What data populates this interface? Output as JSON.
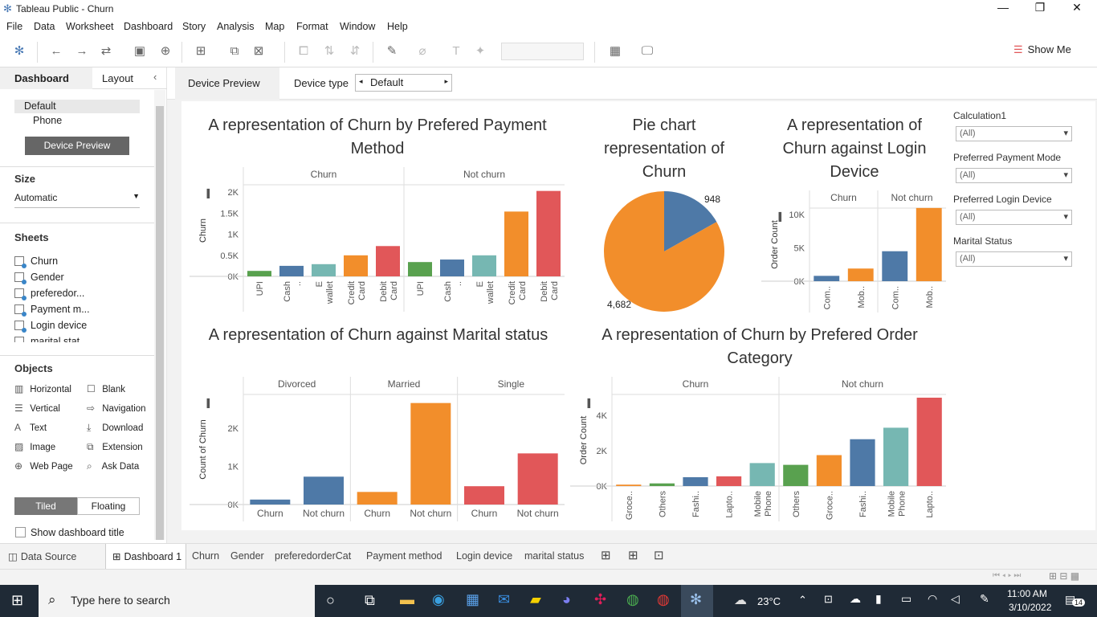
{
  "window": {
    "title": "Tableau Public - Churn"
  },
  "menu": [
    "File",
    "Data",
    "Worksheet",
    "Dashboard",
    "Story",
    "Analysis",
    "Map",
    "Format",
    "Window",
    "Help"
  ],
  "toolbar": {
    "show_me": "Show Me"
  },
  "left": {
    "tab_dashboard": "Dashboard",
    "tab_layout": "Layout",
    "devices": [
      "Default",
      "Phone"
    ],
    "device_preview_btn": "Device Preview",
    "size_head": "Size",
    "size_value": "Automatic",
    "sheets_head": "Sheets",
    "sheets": [
      "Churn",
      "Gender",
      "preferedor...",
      "Payment m...",
      "Login device",
      "marital stat"
    ],
    "objects_head": "Objects",
    "objects": [
      {
        "label": "Horizontal",
        "icon": "horizontal-icon"
      },
      {
        "label": "Blank",
        "icon": "blank-icon"
      },
      {
        "label": "Vertical",
        "icon": "vertical-icon"
      },
      {
        "label": "Navigation",
        "icon": "navigation-icon"
      },
      {
        "label": "Text",
        "icon": "text-icon"
      },
      {
        "label": "Download",
        "icon": "download-icon"
      },
      {
        "label": "Image",
        "icon": "image-icon"
      },
      {
        "label": "Extension",
        "icon": "extension-icon"
      },
      {
        "label": "Web Page",
        "icon": "web-page-icon"
      },
      {
        "label": "Ask Data",
        "icon": "ask-data-icon"
      }
    ],
    "tiled": "Tiled",
    "floating": "Floating",
    "show_title": "Show dashboard title"
  },
  "devbar": {
    "device_preview": "Device Preview",
    "device_type_label": "Device type",
    "device_type_value": "Default"
  },
  "filters": [
    {
      "label": "Calculation1",
      "value": "(All)"
    },
    {
      "label": "Preferred Payment Mode",
      "value": "(All)"
    },
    {
      "label": "Preferred Login Device",
      "value": "(All)"
    },
    {
      "label": "Marital Status",
      "value": "(All)"
    }
  ],
  "colors": {
    "blue": "#4e79a7",
    "green": "#59a14f",
    "teal": "#76b7b2",
    "orange": "#f28e2b",
    "red": "#e15759"
  },
  "chart_data": [
    {
      "type": "bar",
      "title": "A representation of Churn by Prefered Payment Method",
      "ylabel": "Churn",
      "ylim": [
        0,
        2100
      ],
      "ticks": [
        "2K",
        "1.5K",
        "1K",
        "0.5K",
        "0K"
      ],
      "tick_values": [
        2000,
        1500,
        1000,
        500,
        0
      ],
      "panels": [
        {
          "name": "Churn",
          "categories": [
            "UPI",
            "Cash ..",
            "E wallet",
            "Credit Card",
            "Debit Card"
          ],
          "values": [
            130,
            250,
            290,
            500,
            720
          ]
        },
        {
          "name": "Not churn",
          "categories": [
            "UPI",
            "Cash ..",
            "E wallet",
            "Credit Card",
            "Debit Card"
          ],
          "values": [
            340,
            400,
            500,
            1540,
            2030
          ]
        }
      ],
      "bar_colors": [
        "green",
        "blue",
        "teal",
        "orange",
        "red"
      ]
    },
    {
      "type": "pie",
      "title": "Pie chart representation of Churn",
      "slices": [
        {
          "name": "Churn",
          "value": 948,
          "color": "blue"
        },
        {
          "name": "Not churn",
          "value": 4682,
          "color": "orange"
        }
      ]
    },
    {
      "type": "bar",
      "title": "A representation of Churn against Login Device",
      "ylabel": "Order Count",
      "ylim": [
        0,
        10500
      ],
      "ticks": [
        "10K",
        "5K",
        "0K"
      ],
      "tick_values": [
        10000,
        5000,
        0
      ],
      "panels": [
        {
          "name": "Churn",
          "categories": [
            "Com..",
            "Mob.."
          ],
          "values": [
            800,
            1900
          ]
        },
        {
          "name": "Not churn",
          "categories": [
            "Com..",
            "Mob.."
          ],
          "values": [
            4500,
            11000
          ]
        }
      ],
      "bar_colors": [
        "blue",
        "orange"
      ]
    },
    {
      "type": "bar",
      "title": "A representation of Churn against Marital status",
      "ylabel": "Count of Churn",
      "ylim": [
        0,
        2800
      ],
      "ticks": [
        "2K",
        "1K",
        "0K"
      ],
      "tick_values": [
        2000,
        1000,
        0
      ],
      "panels": [
        {
          "name": "Divorced",
          "categories": [
            "Churn",
            "Not churn"
          ],
          "values": [
            130,
            730
          ]
        },
        {
          "name": "Married",
          "categories": [
            "Churn",
            "Not churn"
          ],
          "values": [
            330,
            2660
          ]
        },
        {
          "name": "Single",
          "categories": [
            "Churn",
            "Not churn"
          ],
          "values": [
            480,
            1340
          ]
        }
      ],
      "bar_colors": [
        "blue",
        "blue",
        "orange",
        "orange",
        "red",
        "red"
      ]
    },
    {
      "type": "bar",
      "title": "A representation of Churn by Prefered Order Category",
      "ylabel": "Order Count",
      "ylim": [
        0,
        5000
      ],
      "ticks": [
        "4K",
        "2K",
        "0K"
      ],
      "tick_values": [
        4000,
        2000,
        0
      ],
      "panels": [
        {
          "name": "Churn",
          "categories": [
            "Groce..",
            "Others",
            "Fashi..",
            "Lapto..",
            "Mobile Phone"
          ],
          "values": [
            80,
            150,
            500,
            550,
            1300
          ]
        },
        {
          "name": "Not churn",
          "categories": [
            "Others",
            "Groce..",
            "Fashi..",
            "Mobile Phone",
            "Lapto.."
          ],
          "values": [
            1200,
            1750,
            2650,
            3300,
            5000
          ]
        }
      ],
      "bar_colors": [
        [
          "orange",
          "green",
          "blue",
          "red",
          "teal"
        ],
        [
          "green",
          "orange",
          "blue",
          "teal",
          "red"
        ]
      ]
    }
  ],
  "sheet_tabs": [
    "Data Source",
    "Dashboard 1",
    "Churn",
    "Gender",
    "preferedorderCat",
    "Payment method",
    "Login device",
    "marital status"
  ],
  "taskbar": {
    "search": "Type here to search",
    "weather": "23°C",
    "time": "11:00 AM",
    "date": "3/10/2022",
    "notif": "14"
  }
}
